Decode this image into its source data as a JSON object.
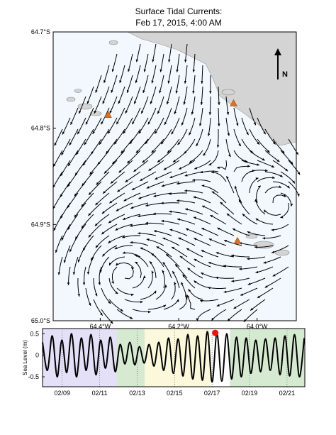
{
  "map": {
    "title": [
      "Surface Tidal Currents:",
      "Feb 17, 2015,  4:00 AM"
    ],
    "north_label": "N",
    "latlim": [
      64.7,
      65.0
    ],
    "lonlim": [
      64.52,
      63.9
    ],
    "latticks": [
      {
        "value": 64.7,
        "label": "64.7°S"
      },
      {
        "value": 64.8,
        "label": "64.8°S"
      },
      {
        "value": 64.9,
        "label": "64.9°S"
      },
      {
        "value": 65.0,
        "label": "65.0°S"
      }
    ],
    "lonticks": [
      {
        "value": 64.4,
        "label": "64.4°W"
      },
      {
        "value": 64.2,
        "label": "64.2°W"
      },
      {
        "value": 64.0,
        "label": "64.0°W"
      }
    ],
    "stations": [
      {
        "lat": 64.786,
        "lon": 64.38
      },
      {
        "lat": 64.774,
        "lon": 64.06
      },
      {
        "lat": 64.917,
        "lon": 64.05
      }
    ],
    "station_color": "#e07020"
  },
  "chart_data": {
    "type": "line",
    "ylabel": "Sea Level (m)",
    "xlim": [
      7.95,
      21.95
    ],
    "ylim": [
      -0.73,
      0.62
    ],
    "yticks": [
      -0.5,
      0,
      0.5
    ],
    "xticks": [
      {
        "value": 9,
        "label": "02/09"
      },
      {
        "value": 11,
        "label": "02/11"
      },
      {
        "value": 13,
        "label": "02/13"
      },
      {
        "value": 15,
        "label": "02/15"
      },
      {
        "value": 17,
        "label": "02/17"
      },
      {
        "value": 19,
        "label": "02/19"
      },
      {
        "value": 21,
        "label": "02/21"
      }
    ],
    "grid": true,
    "bands": [
      {
        "from": 7.95,
        "to": 11.9,
        "color": "#e3e0f7"
      },
      {
        "from": 11.9,
        "to": 13.4,
        "color": "#d6ead2"
      },
      {
        "from": 13.4,
        "to": 16.9,
        "color": "#fbf8dc"
      },
      {
        "from": 17.95,
        "to": 21.95,
        "color": "#d6ead2"
      }
    ],
    "x": [
      7.95,
      8.21,
      8.47,
      8.73,
      8.98,
      9.24,
      9.5,
      9.76,
      10.02,
      10.28,
      10.54,
      10.8,
      11.05,
      11.31,
      11.57,
      11.83,
      12.09,
      12.35,
      12.61,
      12.87,
      13.12,
      13.38,
      13.64,
      13.9,
      14.16,
      14.42,
      14.68,
      14.93,
      15.19,
      15.45,
      15.71,
      15.97,
      16.23,
      16.49,
      16.75,
      17.0,
      17.26,
      17.52,
      17.78,
      18.04,
      18.3,
      18.56,
      18.82,
      19.07,
      19.33,
      19.59,
      19.85,
      20.11,
      20.37,
      20.63,
      20.89,
      21.14,
      21.4,
      21.66,
      21.92
    ],
    "series": [
      {
        "color": "#000000",
        "values": [
          0.3,
          -0.35,
          0.45,
          -0.5,
          0.35,
          -0.4,
          0.5,
          -0.5,
          0.4,
          -0.35,
          0.48,
          -0.45,
          0.35,
          -0.3,
          0.42,
          -0.38,
          0.25,
          -0.2,
          0.3,
          -0.22,
          0.2,
          -0.18,
          0.25,
          -0.25,
          0.3,
          -0.35,
          0.4,
          -0.42,
          0.38,
          -0.48,
          0.48,
          -0.55,
          0.45,
          -0.58,
          0.55,
          -0.62,
          0.5,
          -0.6,
          0.5,
          -0.55,
          0.42,
          -0.5,
          0.4,
          -0.42,
          0.35,
          -0.38,
          0.38,
          -0.35,
          0.4,
          -0.45,
          0.45,
          -0.48,
          0.48,
          -0.5,
          0.4
        ]
      }
    ],
    "current": {
      "x": 17.17,
      "y": 0.52,
      "color": "#ee1111"
    }
  }
}
